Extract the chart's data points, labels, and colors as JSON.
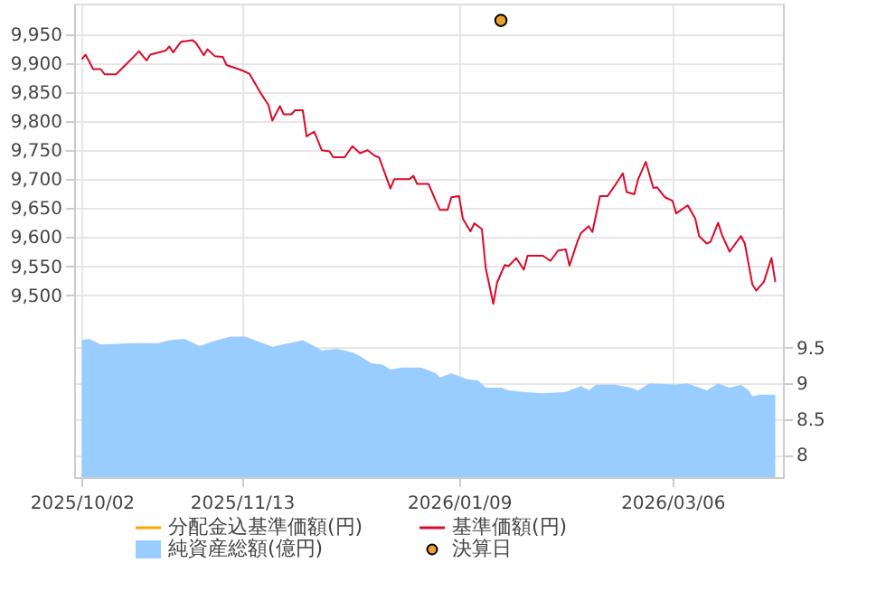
{
  "chart_data": {
    "type": "line",
    "legend": "bottom",
    "grid": true,
    "xlim": [
      "2025-09-30",
      "2026-04-04"
    ],
    "xticks": [
      {
        "value": "2025-10-02",
        "label": "2025/10/02"
      },
      {
        "value": "2025-11-13",
        "label": "2025/11/13"
      },
      {
        "value": "2026-01-09",
        "label": "2026/01/09"
      },
      {
        "value": "2026-03-06",
        "label": "2026/03/06"
      }
    ],
    "ylim": [
      9186,
      10003
    ],
    "yticks": [
      {
        "value": 9500,
        "label": "9,500"
      },
      {
        "value": 9550,
        "label": "9,550"
      },
      {
        "value": 9600,
        "label": "9,600"
      },
      {
        "value": 9650,
        "label": "9,650"
      },
      {
        "value": 9700,
        "label": "9,700"
      },
      {
        "value": 9750,
        "label": "9,750"
      },
      {
        "value": 9800,
        "label": "9,800"
      },
      {
        "value": 9850,
        "label": "9,850"
      },
      {
        "value": 9900,
        "label": "9,900"
      },
      {
        "value": 9950,
        "label": "9,950"
      }
    ],
    "y2lim": [
      7.69,
      14.3
    ],
    "y2ticks": [
      8,
      8.5,
      9,
      9.5
    ],
    "series": [
      {
        "name": "分配金込基準価額(円)",
        "color": "#ffa500"
      },
      {
        "name": "基準価額(円)",
        "color": "#dc0a28",
        "x": [
          "2025-10-02",
          "2025-10-03",
          "2025-10-05",
          "2025-10-07",
          "2025-10-08",
          "2025-10-11",
          "2025-10-15",
          "2025-10-17",
          "2025-10-19",
          "2025-10-20",
          "2025-10-24",
          "2025-10-25",
          "2025-10-26",
          "2025-10-28",
          "2025-10-31",
          "2025-11-01",
          "2025-11-03",
          "2025-11-04",
          "2025-11-06",
          "2025-11-08",
          "2025-11-09",
          "2025-11-13",
          "2025-11-15",
          "2025-11-18",
          "2025-11-20",
          "2025-11-21",
          "2025-11-23",
          "2025-11-24",
          "2025-11-26",
          "2025-11-27",
          "2025-11-29",
          "2025-11-30",
          "2025-12-02",
          "2025-12-04",
          "2025-12-06",
          "2025-12-07",
          "2025-12-10",
          "2025-12-12",
          "2025-12-14",
          "2025-12-16",
          "2025-12-18",
          "2025-12-19",
          "2025-12-22",
          "2025-12-23",
          "2025-12-27",
          "2025-12-28",
          "2025-12-29",
          "2026-01-01",
          "2026-01-03",
          "2026-01-04",
          "2026-01-06",
          "2026-01-07",
          "2026-01-09",
          "2026-01-10",
          "2026-01-12",
          "2026-01-13",
          "2026-01-15",
          "2026-01-16",
          "2026-01-18",
          "2026-01-19",
          "2026-01-21",
          "2026-01-22",
          "2026-01-24",
          "2026-01-26",
          "2026-01-27",
          "2026-01-31",
          "2026-02-02",
          "2026-02-04",
          "2026-02-06",
          "2026-02-07",
          "2026-02-09",
          "2026-02-10",
          "2026-02-12",
          "2026-02-13",
          "2026-02-15",
          "2026-02-17",
          "2026-02-19",
          "2026-02-21",
          "2026-02-22",
          "2026-02-24",
          "2026-02-25",
          "2026-02-27",
          "2026-03-01",
          "2026-03-02",
          "2026-03-04",
          "2026-03-06",
          "2026-03-07",
          "2026-03-10",
          "2026-03-12",
          "2026-03-13",
          "2026-03-15",
          "2026-03-16",
          "2026-03-18",
          "2026-03-19",
          "2026-03-21",
          "2026-03-24",
          "2026-03-25",
          "2026-03-27",
          "2026-03-28",
          "2026-03-30",
          "2026-04-01",
          "2026-04-02"
        ],
        "values": [
          9907,
          9915,
          9890,
          9890,
          9881,
          9881,
          9907,
          9921,
          9905,
          9915,
          9922,
          9929,
          9919,
          9937,
          9940,
          9935,
          9914,
          9924,
          9912,
          9911,
          9897,
          9888,
          9882,
          9848,
          9828,
          9801,
          9826,
          9812,
          9812,
          9819,
          9819,
          9774,
          9782,
          9750,
          9748,
          9738,
          9738,
          9757,
          9745,
          9750,
          9740,
          9738,
          9684,
          9700,
          9700,
          9706,
          9692,
          9692,
          9661,
          9647,
          9647,
          9669,
          9671,
          9632,
          9610,
          9624,
          9614,
          9547,
          9485,
          9522,
          9552,
          9550,
          9564,
          9544,
          9568,
          9568,
          9559,
          9577,
          9579,
          9551,
          9591,
          9607,
          9619,
          9609,
          9671,
          9671,
          9690,
          9710,
          9678,
          9674,
          9700,
          9730,
          9685,
          9686,
          9669,
          9663,
          9641,
          9655,
          9632,
          9602,
          9589,
          9592,
          9625,
          9604,
          9575,
          9602,
          9589,
          9518,
          9508,
          9523,
          9564,
          9523
        ]
      },
      {
        "name": "純資産総額(億円)",
        "color": "#99ccff",
        "type": "area",
        "axis": "y2",
        "x": [
          "2025-10-02",
          "2025-10-04",
          "2025-10-07",
          "2025-10-15",
          "2025-10-22",
          "2025-10-25",
          "2025-10-29",
          "2025-11-02",
          "2025-11-05",
          "2025-11-10",
          "2025-11-14",
          "2025-11-18",
          "2025-11-21",
          "2025-11-29",
          "2025-12-02",
          "2025-12-04",
          "2025-12-08",
          "2025-12-12",
          "2025-12-14",
          "2025-12-17",
          "2025-12-20",
          "2025-12-22",
          "2025-12-25",
          "2025-12-30",
          "2026-01-03",
          "2026-01-04",
          "2026-01-07",
          "2026-01-11",
          "2026-01-14",
          "2026-01-16",
          "2026-01-20",
          "2026-01-22",
          "2026-01-26",
          "2026-01-31",
          "2026-02-06",
          "2026-02-10",
          "2026-02-12",
          "2026-02-14",
          "2026-02-19",
          "2026-02-23",
          "2026-02-25",
          "2026-02-28",
          "2026-03-07",
          "2026-03-10",
          "2026-03-15",
          "2026-03-18",
          "2026-03-21",
          "2026-03-24",
          "2026-03-26",
          "2026-03-27",
          "2026-03-29",
          "2026-04-02"
        ],
        "values": [
          9.6,
          9.62,
          9.54,
          9.56,
          9.56,
          9.6,
          9.62,
          9.52,
          9.58,
          9.65,
          9.65,
          9.57,
          9.51,
          9.6,
          9.52,
          9.46,
          9.48,
          9.43,
          9.38,
          9.28,
          9.26,
          9.19,
          9.22,
          9.22,
          9.14,
          9.08,
          9.14,
          9.06,
          9.04,
          8.94,
          8.94,
          8.9,
          8.88,
          8.86,
          8.88,
          8.96,
          8.9,
          8.98,
          8.98,
          8.94,
          8.9,
          9.0,
          8.98,
          9.0,
          8.9,
          9.0,
          8.94,
          8.98,
          8.9,
          8.82,
          8.84,
          8.84
        ]
      },
      {
        "name": "決算日",
        "color": "#e8a030",
        "type": "scatter",
        "x": [
          "2026-01-20"
        ],
        "values": [
          9974
        ]
      }
    ]
  }
}
